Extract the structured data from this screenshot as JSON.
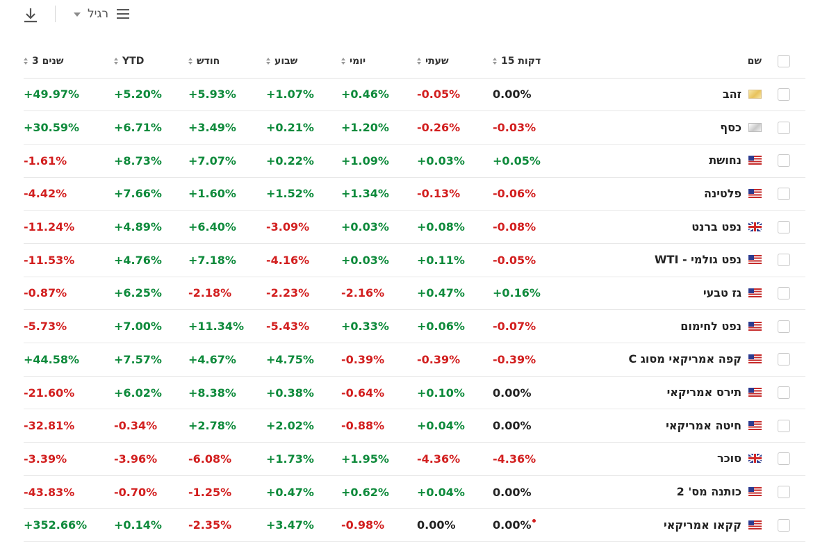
{
  "toolbar": {
    "view_label": "רגיל",
    "download_icon": "download-icon",
    "menu_icon": "hamburger-icon"
  },
  "columns": {
    "name": "שם",
    "m15": "15 דקות",
    "hourly": "שעתי",
    "daily": "יומי",
    "weekly": "שבוע",
    "monthly": "חודש",
    "ytd": "YTD",
    "y3": "3 שנים"
  },
  "rows": [
    {
      "name": "זהב",
      "flag": "gold",
      "m15": "0.00%",
      "hourly": "-0.05%",
      "daily": "+0.46%",
      "weekly": "+1.07%",
      "monthly": "+5.93%",
      "ytd": "+5.20%",
      "y3": "+49.97%"
    },
    {
      "name": "כסף",
      "flag": "silver",
      "m15": "-0.03%",
      "hourly": "-0.26%",
      "daily": "+1.20%",
      "weekly": "+0.21%",
      "monthly": "+3.49%",
      "ytd": "+6.71%",
      "y3": "+30.59%"
    },
    {
      "name": "נחושת",
      "flag": "us",
      "m15": "+0.05%",
      "hourly": "+0.03%",
      "daily": "+1.09%",
      "weekly": "+0.22%",
      "monthly": "+7.07%",
      "ytd": "+8.73%",
      "y3": "-1.61%"
    },
    {
      "name": "פלטינה",
      "flag": "us",
      "m15": "-0.06%",
      "hourly": "-0.13%",
      "daily": "+1.34%",
      "weekly": "+1.52%",
      "monthly": "+1.60%",
      "ytd": "+7.66%",
      "y3": "-4.42%"
    },
    {
      "name": "נפט ברנט",
      "flag": "uk",
      "m15": "-0.08%",
      "hourly": "+0.08%",
      "daily": "+0.03%",
      "weekly": "-3.09%",
      "monthly": "+6.40%",
      "ytd": "+4.89%",
      "y3": "-11.24%"
    },
    {
      "name": "נפט גולמי - WTI",
      "flag": "us",
      "m15": "-0.05%",
      "hourly": "+0.11%",
      "daily": "+0.03%",
      "weekly": "-4.16%",
      "monthly": "+7.18%",
      "ytd": "+4.76%",
      "y3": "-11.53%"
    },
    {
      "name": "גז טבעי",
      "flag": "us",
      "m15": "+0.16%",
      "hourly": "+0.47%",
      "daily": "-2.16%",
      "weekly": "-2.23%",
      "monthly": "-2.18%",
      "ytd": "+6.25%",
      "y3": "-0.87%"
    },
    {
      "name": "נפט לחימום",
      "flag": "us",
      "m15": "-0.07%",
      "hourly": "+0.06%",
      "daily": "+0.33%",
      "weekly": "-5.43%",
      "monthly": "+11.34%",
      "ytd": "+7.00%",
      "y3": "-5.73%"
    },
    {
      "name": "קפה אמריקאי מסוג C",
      "flag": "us",
      "m15": "-0.39%",
      "hourly": "-0.39%",
      "daily": "-0.39%",
      "weekly": "+4.75%",
      "monthly": "+4.67%",
      "ytd": "+7.57%",
      "y3": "+44.58%"
    },
    {
      "name": "תירס אמריקאי",
      "flag": "us",
      "m15": "0.00%",
      "hourly": "+0.10%",
      "daily": "-0.64%",
      "weekly": "+0.38%",
      "monthly": "+8.38%",
      "ytd": "+6.02%",
      "y3": "-21.60%"
    },
    {
      "name": "חיטה אמריקאי",
      "flag": "us",
      "m15": "0.00%",
      "hourly": "+0.04%",
      "daily": "-0.88%",
      "weekly": "+2.02%",
      "monthly": "+2.78%",
      "ytd": "-0.34%",
      "y3": "-32.81%"
    },
    {
      "name": "סוכר",
      "flag": "uk",
      "m15": "-4.36%",
      "hourly": "-4.36%",
      "daily": "+1.95%",
      "weekly": "+1.73%",
      "monthly": "-6.08%",
      "ytd": "-3.96%",
      "y3": "-3.39%"
    },
    {
      "name": "כותנה מס' 2",
      "flag": "us",
      "m15": "0.00%",
      "hourly": "+0.04%",
      "daily": "+0.62%",
      "weekly": "+0.47%",
      "monthly": "-1.25%",
      "ytd": "-0.70%",
      "y3": "-43.83%"
    },
    {
      "name": "קקאו אמריקאי",
      "flag": "us",
      "m15": "0.00%",
      "hourly": "0.00%",
      "daily": "-0.98%",
      "weekly": "+3.47%",
      "monthly": "-2.35%",
      "ytd": "+0.14%",
      "y3": "+352.66%",
      "m15_dot": true
    }
  ]
}
